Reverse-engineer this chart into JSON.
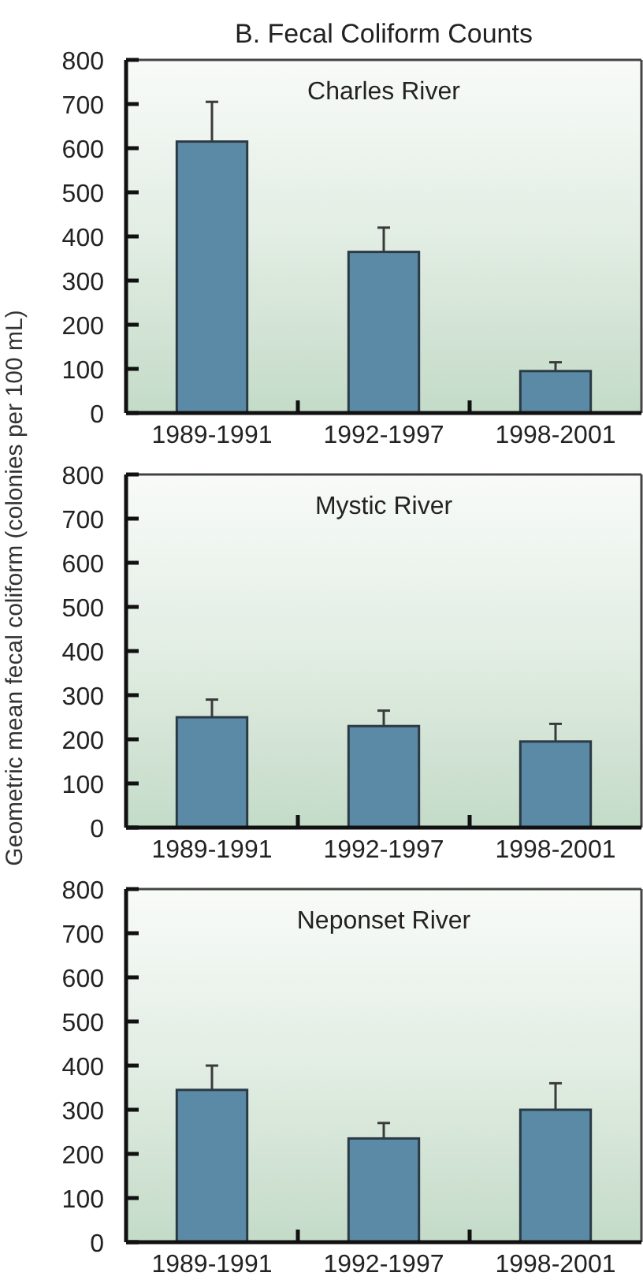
{
  "chart_data": [
    {
      "type": "bar",
      "title": "B. Fecal Coliform Counts",
      "subtitle": "Charles River",
      "categories": [
        "1989-1991",
        "1992-1997",
        "1998-2001"
      ],
      "values": [
        615,
        365,
        95
      ],
      "errors": [
        [
          615,
          705
        ],
        [
          365,
          420
        ],
        [
          95,
          115
        ]
      ],
      "color": "#5b8aa6",
      "ylim": [
        0,
        800
      ],
      "yticks": [
        0,
        100,
        200,
        300,
        400,
        500,
        600,
        700,
        800
      ]
    },
    {
      "type": "bar",
      "subtitle": "Mystic River",
      "ylabel": "Geometric mean fecal coliform (colonies per 100 mL)",
      "categories": [
        "1989-1991",
        "1992-1997",
        "1998-2001"
      ],
      "values": [
        250,
        230,
        195
      ],
      "errors": [
        [
          250,
          290
        ],
        [
          230,
          265
        ],
        [
          195,
          235
        ]
      ],
      "color": "#5b8aa6",
      "ylim": [
        0,
        800
      ],
      "yticks": [
        0,
        100,
        200,
        300,
        400,
        500,
        600,
        700,
        800
      ]
    },
    {
      "type": "bar",
      "subtitle": "Neponset River",
      "categories": [
        "1989-1991",
        "1992-1997",
        "1998-2001"
      ],
      "values": [
        345,
        235,
        300
      ],
      "errors": [
        [
          345,
          400
        ],
        [
          235,
          270
        ],
        [
          300,
          360
        ]
      ],
      "color": "#5b8aa6",
      "ylim": [
        0,
        800
      ],
      "yticks": [
        0,
        100,
        200,
        300,
        400,
        500,
        600,
        700,
        800
      ]
    }
  ]
}
